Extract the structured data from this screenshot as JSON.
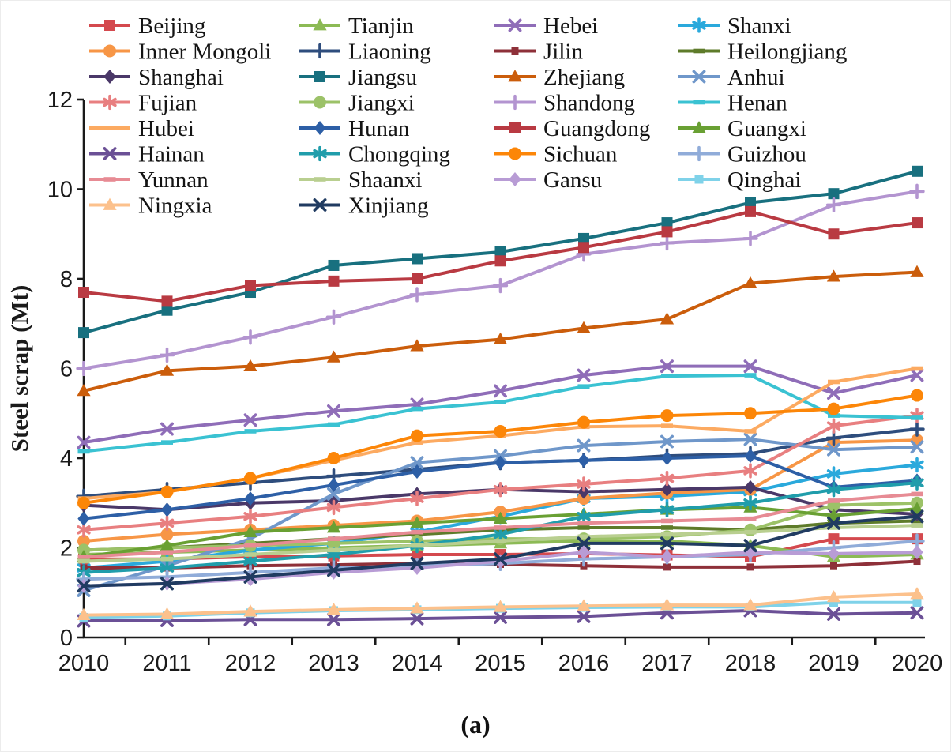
{
  "figure": {
    "caption": "(a)"
  },
  "chart_data": {
    "type": "line",
    "title": "",
    "xlabel": "",
    "ylabel": "Steel scrap (Mt)",
    "ylim": [
      0,
      12
    ],
    "yticks": [
      0,
      2,
      4,
      6,
      8,
      10,
      12
    ],
    "grid": false,
    "legend_position": "top",
    "categories": [
      "2010",
      "2011",
      "2012",
      "2013",
      "2014",
      "2015",
      "2016",
      "2017",
      "2018",
      "2019",
      "2020"
    ],
    "series": [
      {
        "name": "Beijing",
        "color": "#d4494e",
        "marker": "square",
        "values": [
          1.75,
          1.75,
          1.8,
          1.82,
          1.85,
          1.85,
          1.87,
          1.84,
          1.8,
          2.2,
          2.2
        ]
      },
      {
        "name": "Tianjin",
        "color": "#8cba55",
        "marker": "triangle",
        "values": [
          1.85,
          1.9,
          1.95,
          2.0,
          2.05,
          2.1,
          2.15,
          2.15,
          2.05,
          1.8,
          1.85
        ]
      },
      {
        "name": "Hebei",
        "color": "#8f6db8",
        "marker": "x",
        "values": [
          4.35,
          4.65,
          4.85,
          5.05,
          5.2,
          5.5,
          5.85,
          6.05,
          6.05,
          5.45,
          5.85
        ]
      },
      {
        "name": "Shanxi",
        "color": "#2aa9dc",
        "marker": "asterisk",
        "values": [
          1.55,
          1.7,
          1.95,
          2.1,
          2.35,
          2.7,
          3.1,
          3.15,
          3.25,
          3.65,
          3.85
        ]
      },
      {
        "name": "Inner Mongoli",
        "color": "#f79646",
        "marker": "circle",
        "values": [
          2.15,
          2.3,
          2.4,
          2.5,
          2.6,
          2.8,
          3.1,
          3.22,
          3.3,
          4.35,
          4.4
        ]
      },
      {
        "name": "Liaoning",
        "color": "#2e4d7d",
        "marker": "plus",
        "values": [
          3.15,
          3.3,
          3.45,
          3.6,
          3.75,
          3.9,
          3.95,
          4.05,
          4.1,
          4.45,
          4.65
        ]
      },
      {
        "name": "Jilin",
        "color": "#8e3039",
        "marker": "square",
        "msize": 9,
        "values": [
          1.55,
          1.55,
          1.6,
          1.62,
          1.65,
          1.63,
          1.6,
          1.57,
          1.57,
          1.6,
          1.7
        ]
      },
      {
        "name": "Heilongjiang",
        "color": "#5e7b2a",
        "marker": "dash",
        "values": [
          1.95,
          2.0,
          2.1,
          2.2,
          2.3,
          2.4,
          2.45,
          2.45,
          2.4,
          2.55,
          2.6
        ]
      },
      {
        "name": "Shanghai",
        "color": "#4a3868",
        "marker": "diamond",
        "values": [
          2.95,
          2.85,
          3.0,
          3.05,
          3.2,
          3.3,
          3.25,
          3.3,
          3.35,
          2.85,
          2.75
        ]
      },
      {
        "name": "Jiangsu",
        "color": "#18707f",
        "marker": "square",
        "values": [
          6.8,
          7.3,
          7.7,
          8.3,
          8.45,
          8.6,
          8.9,
          9.25,
          9.7,
          9.9,
          10.4
        ]
      },
      {
        "name": "Zhejiang",
        "color": "#cb5d0b",
        "marker": "triangle",
        "values": [
          5.5,
          5.95,
          6.05,
          6.25,
          6.5,
          6.65,
          6.9,
          7.1,
          7.9,
          8.05,
          8.15
        ]
      },
      {
        "name": "Anhui",
        "color": "#6f97ca",
        "marker": "x",
        "values": [
          1.05,
          1.6,
          2.2,
          3.2,
          3.9,
          4.05,
          4.28,
          4.37,
          4.42,
          4.19,
          4.25
        ]
      },
      {
        "name": "Fujian",
        "color": "#e87f80",
        "marker": "asterisk",
        "values": [
          2.4,
          2.55,
          2.7,
          2.9,
          3.1,
          3.3,
          3.42,
          3.55,
          3.72,
          4.72,
          4.95
        ]
      },
      {
        "name": "Jiangxi",
        "color": "#9cc268",
        "marker": "circle",
        "values": [
          1.95,
          2.0,
          2.05,
          2.1,
          2.15,
          2.2,
          2.2,
          2.25,
          2.4,
          2.95,
          3.0
        ]
      },
      {
        "name": "Shandong",
        "color": "#b394d0",
        "marker": "plus",
        "values": [
          6.0,
          6.3,
          6.7,
          7.15,
          7.65,
          7.85,
          8.55,
          8.8,
          8.9,
          9.65,
          9.95
        ]
      },
      {
        "name": "Henan",
        "color": "#3ac2d2",
        "marker": "dash",
        "values": [
          4.15,
          4.35,
          4.6,
          4.75,
          5.1,
          5.25,
          5.6,
          5.83,
          5.85,
          4.95,
          4.9
        ]
      },
      {
        "name": "Hubei",
        "color": "#fcaa61",
        "marker": "dash",
        "values": [
          3.1,
          3.25,
          3.55,
          3.95,
          4.35,
          4.5,
          4.7,
          4.72,
          4.6,
          5.7,
          6.0
        ]
      },
      {
        "name": "Hunan",
        "color": "#2d5fa6",
        "marker": "diamond",
        "values": [
          2.65,
          2.85,
          3.1,
          3.4,
          3.7,
          3.9,
          3.95,
          4.0,
          4.05,
          3.35,
          3.5
        ]
      },
      {
        "name": "Guangdong",
        "color": "#b93a42",
        "marker": "square",
        "values": [
          7.7,
          7.5,
          7.85,
          7.95,
          8.0,
          8.4,
          8.7,
          9.05,
          9.5,
          9.0,
          9.25
        ]
      },
      {
        "name": "Guangxi",
        "color": "#69a033",
        "marker": "triangle",
        "values": [
          1.8,
          2.05,
          2.35,
          2.45,
          2.55,
          2.65,
          2.75,
          2.85,
          2.9,
          2.72,
          2.87
        ]
      },
      {
        "name": "Hainan",
        "color": "#6b5096",
        "marker": "x",
        "values": [
          0.37,
          0.38,
          0.4,
          0.4,
          0.42,
          0.45,
          0.47,
          0.55,
          0.6,
          0.52,
          0.55
        ]
      },
      {
        "name": "Chongqing",
        "color": "#209dab",
        "marker": "asterisk",
        "values": [
          1.45,
          1.55,
          1.7,
          1.85,
          2.05,
          2.3,
          2.7,
          2.85,
          3.0,
          3.3,
          3.45
        ]
      },
      {
        "name": "Sichuan",
        "color": "#fc8608",
        "marker": "circle",
        "values": [
          3.0,
          3.25,
          3.55,
          4.0,
          4.5,
          4.6,
          4.8,
          4.95,
          5.0,
          5.1,
          5.4
        ]
      },
      {
        "name": "Guizhou",
        "color": "#90acd9",
        "marker": "plus",
        "values": [
          1.3,
          1.35,
          1.45,
          1.55,
          1.6,
          1.65,
          1.75,
          1.8,
          1.85,
          2.0,
          2.15
        ]
      },
      {
        "name": "Yunnan",
        "color": "#e78b94",
        "marker": "dash",
        "values": [
          1.8,
          1.9,
          2.05,
          2.2,
          2.35,
          2.45,
          2.55,
          2.6,
          2.65,
          3.05,
          3.2
        ]
      },
      {
        "name": "Shaanxi",
        "color": "#b9cf90",
        "marker": "dash",
        "values": [
          1.7,
          1.75,
          1.85,
          1.95,
          2.05,
          2.15,
          2.25,
          2.3,
          2.35,
          2.45,
          2.5
        ]
      },
      {
        "name": "Gansu",
        "color": "#b89cd5",
        "marker": "diamond",
        "values": [
          1.15,
          1.2,
          1.3,
          1.45,
          1.55,
          1.7,
          1.9,
          1.8,
          1.9,
          1.87,
          1.9
        ]
      },
      {
        "name": "Qinghai",
        "color": "#7fd2e9",
        "marker": "square",
        "msize": 11,
        "values": [
          0.45,
          0.48,
          0.55,
          0.6,
          0.62,
          0.65,
          0.67,
          0.68,
          0.68,
          0.78,
          0.78
        ]
      },
      {
        "name": "Ningxia",
        "color": "#fcc18c",
        "marker": "triangle",
        "values": [
          0.5,
          0.52,
          0.58,
          0.62,
          0.65,
          0.68,
          0.7,
          0.72,
          0.72,
          0.9,
          0.97
        ]
      },
      {
        "name": "Xinjiang",
        "color": "#203b61",
        "marker": "x",
        "values": [
          1.15,
          1.2,
          1.35,
          1.5,
          1.65,
          1.75,
          2.1,
          2.1,
          2.05,
          2.55,
          2.7
        ]
      }
    ]
  }
}
